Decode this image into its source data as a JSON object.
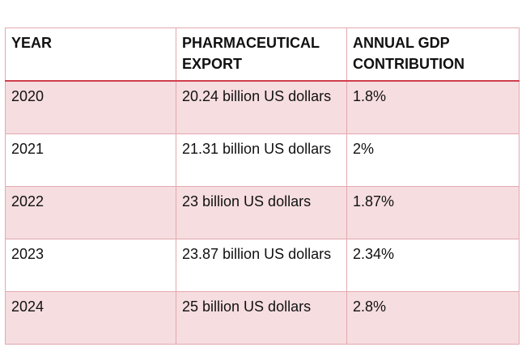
{
  "table": {
    "headers": [
      "YEAR",
      "PHARMACEUTICAL EXPORT",
      "ANNUAL GDP CONTRIBUTION"
    ],
    "rows": [
      [
        "2020",
        "20.24 billion US dollars",
        "1.8%"
      ],
      [
        "2021",
        "21.31 billion US dollars",
        "2%"
      ],
      [
        "2022",
        "23 billion US dollars",
        "1.87%"
      ],
      [
        "2023",
        "23.87 billion US dollars",
        "2.34%"
      ],
      [
        "2024",
        "25 billion US dollars",
        "2.8%"
      ]
    ]
  },
  "colors": {
    "header_rule": "#cf3f4b",
    "cell_border": "#e3a8ae",
    "shaded_row": "#f6dde0",
    "text": "#111111"
  }
}
